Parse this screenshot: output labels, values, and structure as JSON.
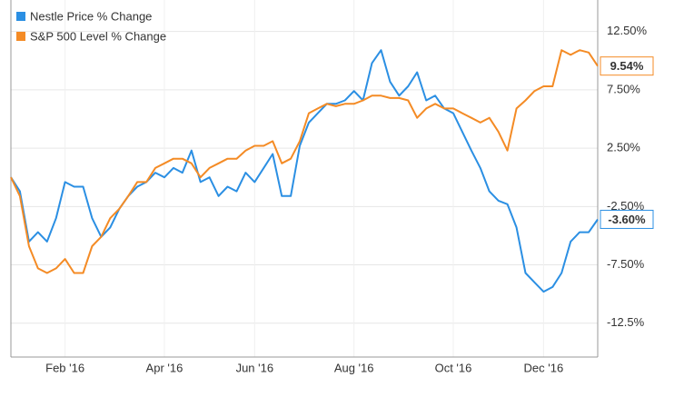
{
  "chart_data": {
    "type": "line",
    "categories": [
      null,
      null,
      null,
      null,
      null,
      null,
      "Feb '16",
      null,
      null,
      null,
      null,
      null,
      null,
      null,
      null,
      null,
      null,
      "Apr '16",
      null,
      null,
      null,
      null,
      null,
      null,
      null,
      null,
      null,
      "Jun '16",
      null,
      null,
      null,
      null,
      null,
      null,
      null,
      null,
      null,
      null,
      "Aug '16",
      null,
      null,
      null,
      null,
      null,
      null,
      null,
      null,
      null,
      null,
      "Oct '16",
      null,
      null,
      null,
      null,
      null,
      null,
      null,
      null,
      null,
      "Dec '16",
      null,
      null,
      null,
      null,
      null,
      null
    ],
    "series": [
      {
        "name": "Nestle Price % Change",
        "color": "#2b8fe3",
        "end_label": "-3.60%",
        "values": [
          0,
          -1.2,
          -5.5,
          -4.7,
          -5.5,
          -3.5,
          -0.4,
          -0.8,
          -0.8,
          -3.5,
          -5.1,
          -4.3,
          -2.7,
          -1.6,
          -0.8,
          -0.4,
          0.4,
          0,
          0.8,
          0.4,
          2.3,
          -0.4,
          0,
          -1.6,
          -0.8,
          -1.2,
          0.4,
          -0.4,
          0.8,
          2.0,
          -1.6,
          -1.6,
          2.7,
          4.7,
          5.5,
          6.3,
          6.3,
          6.6,
          7.4,
          6.6,
          9.8,
          10.9,
          8.2,
          7.0,
          7.8,
          9.0,
          6.6,
          7.0,
          5.9,
          5.5,
          3.9,
          2.3,
          0.8,
          -1.2,
          -2.0,
          -2.3,
          -4.3,
          -8.2,
          -9.0,
          -9.8,
          -9.4,
          -8.2,
          -5.5,
          -4.7,
          -4.7,
          -3.6
        ]
      },
      {
        "name": "S&P 500 Level % Change",
        "color": "#f48b25",
        "end_label": "9.54%",
        "values": [
          0,
          -1.6,
          -5.9,
          -7.8,
          -8.2,
          -7.8,
          -7.0,
          -8.2,
          -8.2,
          -5.9,
          -5.1,
          -3.5,
          -2.7,
          -1.6,
          -0.4,
          -0.4,
          0.8,
          1.2,
          1.6,
          1.6,
          1.2,
          0,
          0.8,
          1.2,
          1.6,
          1.6,
          2.3,
          2.7,
          2.7,
          3.1,
          1.2,
          1.6,
          3.1,
          5.5,
          5.9,
          6.3,
          6.1,
          6.3,
          6.3,
          6.6,
          7.0,
          7.0,
          6.8,
          6.8,
          6.6,
          5.1,
          5.9,
          6.3,
          5.9,
          5.9,
          5.5,
          5.1,
          4.7,
          5.1,
          3.9,
          2.3,
          5.9,
          6.6,
          7.4,
          7.8,
          7.8,
          10.9,
          10.5,
          10.9,
          10.7,
          9.54
        ]
      }
    ],
    "ylim": [
      -15.4,
      15.2
    ],
    "yticks": [
      {
        "value": 12.5,
        "label": "12.50%"
      },
      {
        "value": 7.5,
        "label": "7.50%"
      },
      {
        "value": 2.5,
        "label": "2.50%"
      },
      {
        "value": -2.5,
        "label": "-2.50%"
      },
      {
        "value": -7.5,
        "label": "-7.50%"
      },
      {
        "value": -12.5,
        "label": "-12.5%"
      }
    ],
    "grid": true,
    "legend": "upper left"
  }
}
